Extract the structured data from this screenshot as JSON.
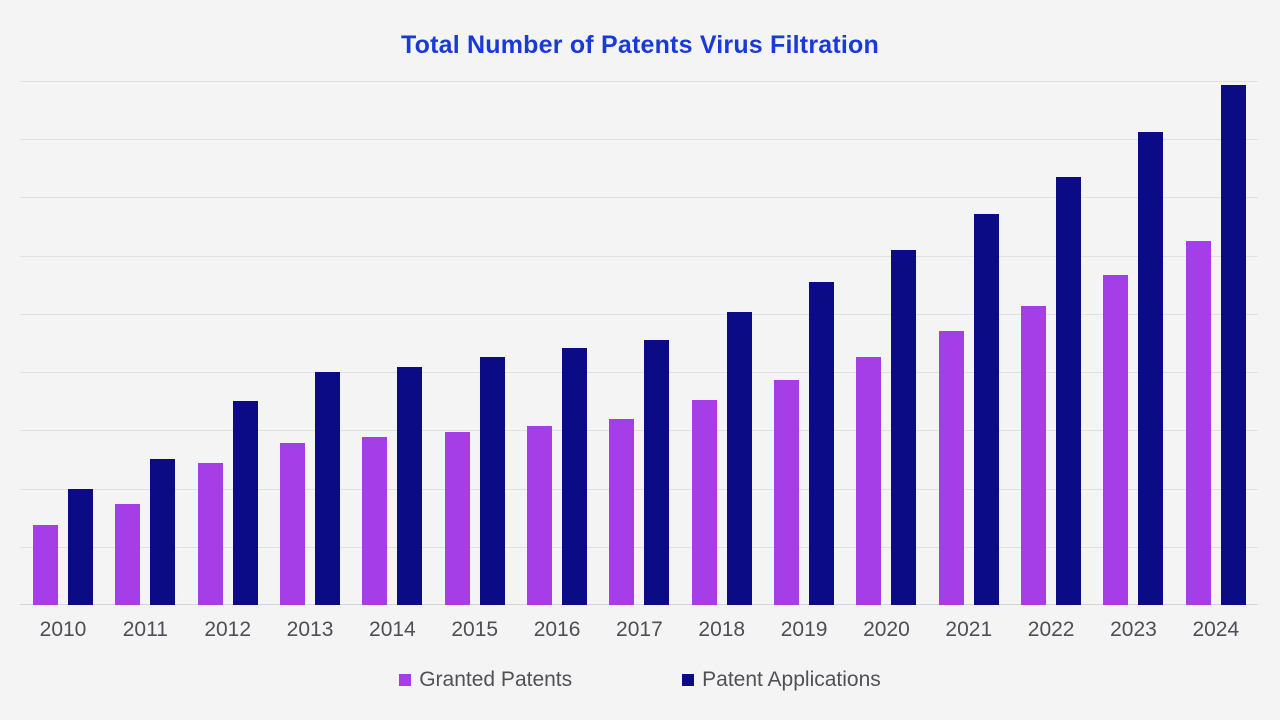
{
  "chart_data": {
    "type": "bar",
    "title": "Total Number of Patents Virus Filtration",
    "categories": [
      "2010",
      "2011",
      "2012",
      "2013",
      "2014",
      "2015",
      "2016",
      "2017",
      "2018",
      "2019",
      "2020",
      "2021",
      "2022",
      "2023",
      "2024"
    ],
    "series": [
      {
        "name": "Granted Patents",
        "color": "#a63ee8",
        "values": [
          69,
          87,
          122,
          139,
          144,
          149,
          154,
          160,
          176,
          193,
          213,
          235,
          257,
          283,
          313
        ]
      },
      {
        "name": "Patent Applications",
        "color": "#0b0b85",
        "values": [
          100,
          125,
          175,
          200,
          204,
          213,
          221,
          228,
          252,
          277,
          305,
          336,
          368,
          406,
          447
        ]
      }
    ],
    "xlabel": "",
    "ylabel": "",
    "ylim": [
      0,
      450
    ],
    "grid_step": 50,
    "grid": true,
    "y_axis_labels_visible": false,
    "legend_position": "bottom"
  },
  "colors": {
    "background": "#f4f4f5",
    "title": "#1a3ad6",
    "gridline": "#e0e0e2",
    "axis_line": "#d5d5d8",
    "tick_label": "#4d4f55",
    "legend_label": "#4f5156"
  }
}
